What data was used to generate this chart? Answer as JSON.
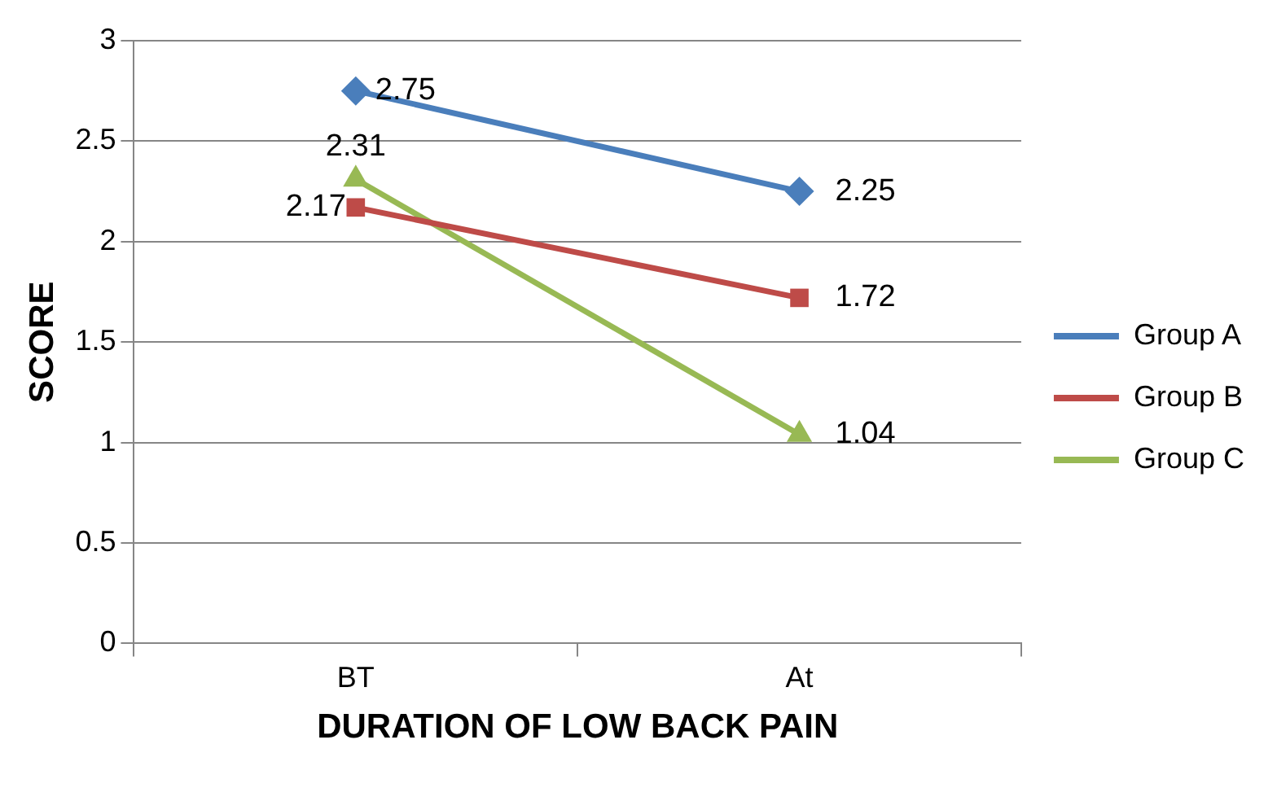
{
  "chart_data": {
    "type": "line",
    "xlabel": "DURATION OF LOW BACK PAIN",
    "ylabel": "SCORE",
    "categories": [
      "BT",
      "At"
    ],
    "series": [
      {
        "name": "Group A",
        "color": "#4a7ebb",
        "values": [
          2.75,
          2.25
        ],
        "marker": "diamond"
      },
      {
        "name": "Group B",
        "color": "#be4b48",
        "values": [
          2.17,
          1.72
        ],
        "marker": "square"
      },
      {
        "name": "Group C",
        "color": "#98b954",
        "values": [
          2.31,
          1.04
        ],
        "marker": "triangle"
      }
    ],
    "ylim": [
      0,
      3
    ],
    "yticks": [
      0,
      0.5,
      1,
      1.5,
      2,
      2.5,
      3
    ],
    "grid": "y",
    "legend": "right",
    "data_labels": true,
    "line_style": "solid"
  }
}
